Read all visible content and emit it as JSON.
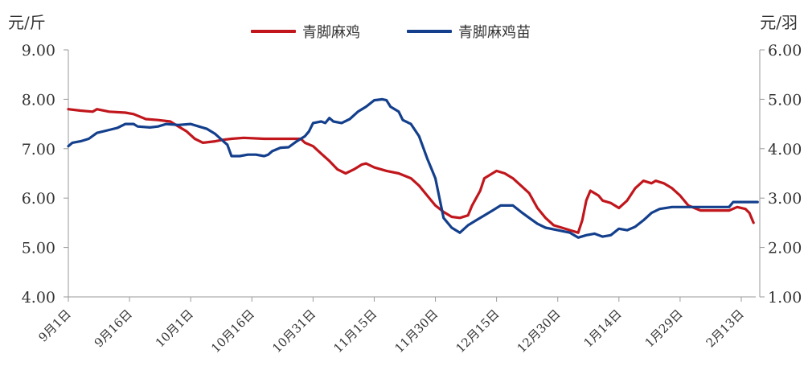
{
  "chart_data": {
    "type": "line",
    "left_unit": "元/斤",
    "right_unit": "元/羽",
    "left_axis": {
      "min": 4,
      "max": 9,
      "step": 1,
      "tick_labels": [
        "4.00",
        "5.00",
        "6.00",
        "7.00",
        "8.00",
        "9.00"
      ]
    },
    "right_axis": {
      "min": 1,
      "max": 6,
      "step": 1,
      "tick_labels": [
        "1.00",
        "2.00",
        "3.00",
        "4.00",
        "5.00",
        "6.00"
      ]
    },
    "x_tick_labels": [
      "9月1日",
      "9月16日",
      "10月1日",
      "10月16日",
      "10月31日",
      "11月15日",
      "11月30日",
      "12月15日",
      "12月30日",
      "1月14日",
      "1月29日",
      "2月13日"
    ],
    "x_tick_interval_days": 15,
    "grid": false,
    "legend_position": "top-center",
    "series": [
      {
        "name": "青脚麻鸡",
        "axis": "left",
        "color": "#c0161c",
        "points": [
          [
            0,
            7.8
          ],
          [
            3,
            7.77
          ],
          [
            6,
            7.75
          ],
          [
            7,
            7.8
          ],
          [
            10,
            7.75
          ],
          [
            14,
            7.73
          ],
          [
            16,
            7.7
          ],
          [
            19,
            7.6
          ],
          [
            22,
            7.58
          ],
          [
            25,
            7.55
          ],
          [
            27,
            7.45
          ],
          [
            29,
            7.35
          ],
          [
            31,
            7.2
          ],
          [
            33,
            7.12
          ],
          [
            36,
            7.15
          ],
          [
            38,
            7.18
          ],
          [
            40,
            7.2
          ],
          [
            43,
            7.22
          ],
          [
            48,
            7.2
          ],
          [
            53,
            7.2
          ],
          [
            57,
            7.2
          ],
          [
            58,
            7.12
          ],
          [
            60,
            7.05
          ],
          [
            62,
            6.9
          ],
          [
            64,
            6.75
          ],
          [
            66,
            6.58
          ],
          [
            68,
            6.5
          ],
          [
            70,
            6.58
          ],
          [
            72,
            6.68
          ],
          [
            73,
            6.7
          ],
          [
            75,
            6.62
          ],
          [
            78,
            6.55
          ],
          [
            81,
            6.5
          ],
          [
            84,
            6.4
          ],
          [
            86,
            6.25
          ],
          [
            88,
            6.05
          ],
          [
            90,
            5.85
          ],
          [
            92,
            5.72
          ],
          [
            94,
            5.62
          ],
          [
            96,
            5.6
          ],
          [
            98,
            5.65
          ],
          [
            99,
            5.85
          ],
          [
            101,
            6.15
          ],
          [
            102,
            6.4
          ],
          [
            105,
            6.55
          ],
          [
            107,
            6.5
          ],
          [
            109,
            6.4
          ],
          [
            111,
            6.25
          ],
          [
            113,
            6.1
          ],
          [
            115,
            5.8
          ],
          [
            117,
            5.6
          ],
          [
            119,
            5.45
          ],
          [
            121,
            5.4
          ],
          [
            123,
            5.35
          ],
          [
            125,
            5.3
          ],
          [
            126,
            5.55
          ],
          [
            127,
            5.95
          ],
          [
            128,
            6.15
          ],
          [
            130,
            6.05
          ],
          [
            131,
            5.95
          ],
          [
            133,
            5.9
          ],
          [
            135,
            5.8
          ],
          [
            137,
            5.95
          ],
          [
            139,
            6.2
          ],
          [
            141,
            6.35
          ],
          [
            143,
            6.3
          ],
          [
            144,
            6.35
          ],
          [
            146,
            6.3
          ],
          [
            148,
            6.2
          ],
          [
            150,
            6.05
          ],
          [
            152,
            5.85
          ],
          [
            155,
            5.75
          ],
          [
            158,
            5.75
          ],
          [
            160,
            5.75
          ],
          [
            162,
            5.75
          ],
          [
            164,
            5.82
          ],
          [
            166,
            5.78
          ],
          [
            167,
            5.7
          ],
          [
            168,
            5.5
          ]
        ]
      },
      {
        "name": "青脚麻鸡苗",
        "axis": "right",
        "color": "#133f8c",
        "points": [
          [
            0,
            4.05
          ],
          [
            1,
            4.12
          ],
          [
            3,
            4.15
          ],
          [
            5,
            4.2
          ],
          [
            7,
            4.32
          ],
          [
            10,
            4.38
          ],
          [
            12,
            4.42
          ],
          [
            14,
            4.5
          ],
          [
            16,
            4.5
          ],
          [
            17,
            4.45
          ],
          [
            20,
            4.43
          ],
          [
            22,
            4.45
          ],
          [
            24,
            4.5
          ],
          [
            27,
            4.48
          ],
          [
            30,
            4.5
          ],
          [
            32,
            4.45
          ],
          [
            34,
            4.4
          ],
          [
            36,
            4.3
          ],
          [
            38,
            4.15
          ],
          [
            39,
            4.08
          ],
          [
            40,
            3.85
          ],
          [
            42,
            3.85
          ],
          [
            44,
            3.88
          ],
          [
            46,
            3.88
          ],
          [
            48,
            3.85
          ],
          [
            49,
            3.88
          ],
          [
            50,
            3.95
          ],
          [
            52,
            4.02
          ],
          [
            54,
            4.03
          ],
          [
            56,
            4.15
          ],
          [
            58,
            4.25
          ],
          [
            59,
            4.35
          ],
          [
            60,
            4.52
          ],
          [
            62,
            4.55
          ],
          [
            63,
            4.52
          ],
          [
            64,
            4.62
          ],
          [
            65,
            4.55
          ],
          [
            67,
            4.52
          ],
          [
            69,
            4.6
          ],
          [
            71,
            4.75
          ],
          [
            73,
            4.85
          ],
          [
            75,
            4.98
          ],
          [
            77,
            5.0
          ],
          [
            78,
            4.98
          ],
          [
            79,
            4.85
          ],
          [
            81,
            4.75
          ],
          [
            82,
            4.58
          ],
          [
            84,
            4.5
          ],
          [
            86,
            4.25
          ],
          [
            88,
            3.8
          ],
          [
            89,
            3.6
          ],
          [
            90,
            3.4
          ],
          [
            91,
            3.0
          ],
          [
            92,
            2.6
          ],
          [
            94,
            2.4
          ],
          [
            96,
            2.3
          ],
          [
            98,
            2.45
          ],
          [
            100,
            2.55
          ],
          [
            102,
            2.65
          ],
          [
            104,
            2.75
          ],
          [
            106,
            2.85
          ],
          [
            109,
            2.85
          ],
          [
            111,
            2.72
          ],
          [
            113,
            2.6
          ],
          [
            115,
            2.48
          ],
          [
            117,
            2.4
          ],
          [
            120,
            2.35
          ],
          [
            123,
            2.3
          ],
          [
            125,
            2.2
          ],
          [
            127,
            2.25
          ],
          [
            129,
            2.28
          ],
          [
            131,
            2.22
          ],
          [
            133,
            2.25
          ],
          [
            135,
            2.38
          ],
          [
            137,
            2.35
          ],
          [
            139,
            2.42
          ],
          [
            141,
            2.55
          ],
          [
            143,
            2.7
          ],
          [
            145,
            2.78
          ],
          [
            148,
            2.82
          ],
          [
            152,
            2.82
          ],
          [
            155,
            2.82
          ],
          [
            160,
            2.82
          ],
          [
            162,
            2.82
          ],
          [
            163,
            2.92
          ],
          [
            165,
            2.92
          ],
          [
            167,
            2.92
          ],
          [
            169,
            2.92
          ]
        ]
      }
    ]
  }
}
